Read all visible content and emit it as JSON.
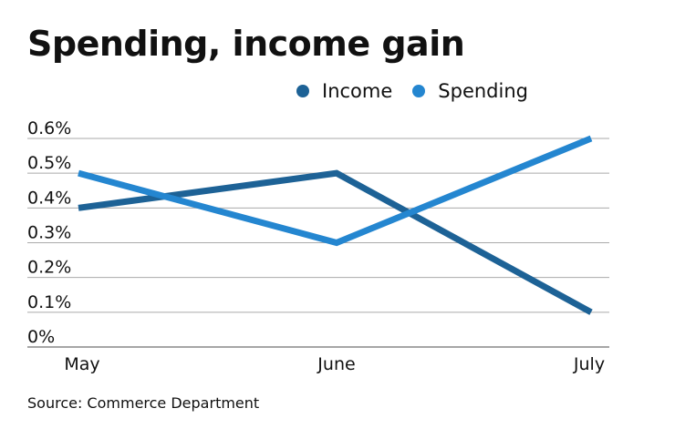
{
  "chart_data": {
    "type": "line",
    "title": "Spending, income gain",
    "categories": [
      "May",
      "June",
      "July"
    ],
    "series": [
      {
        "name": "Income",
        "values": [
          0.4,
          0.5,
          0.1
        ],
        "color": "#1d6296"
      },
      {
        "name": "Spending",
        "values": [
          0.5,
          0.3,
          0.6
        ],
        "color": "#2486d0"
      }
    ],
    "ylim": [
      0,
      0.6
    ],
    "yticks": [
      0,
      0.1,
      0.2,
      0.3,
      0.4,
      0.5,
      0.6
    ],
    "ytick_labels": [
      "0%",
      "0.1%",
      "0.2%",
      "0.3%",
      "0.4%",
      "0.5%",
      "0.6%"
    ],
    "xlabel": "",
    "ylabel": "",
    "grid": true,
    "legend": "top-right",
    "source": "Source: Commerce Department"
  }
}
